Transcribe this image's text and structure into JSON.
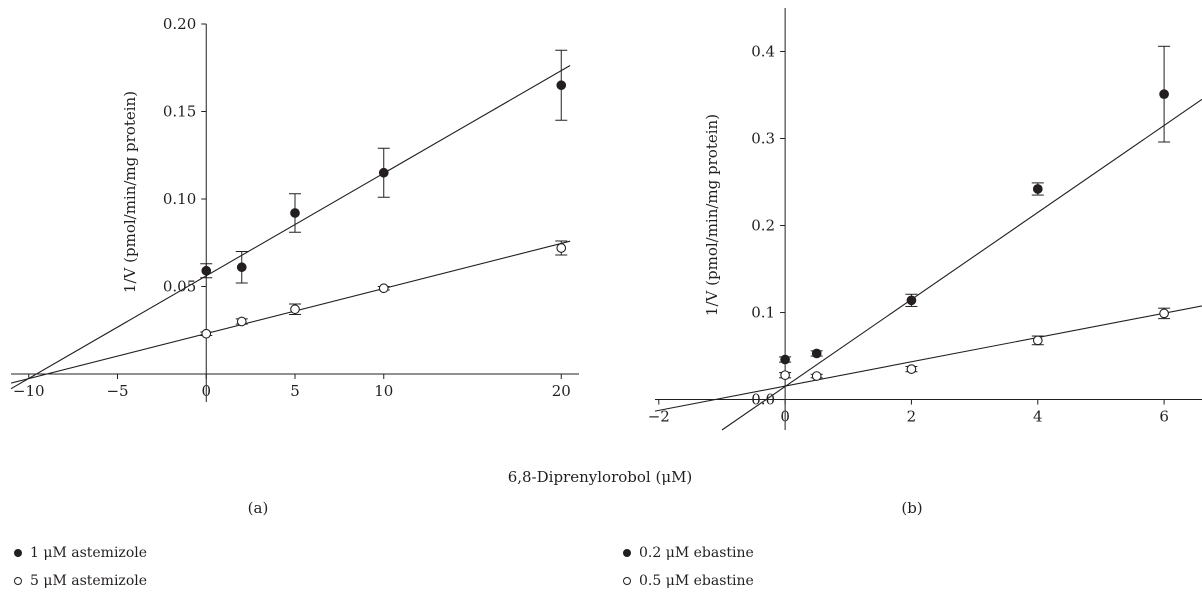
{
  "shared_xlabel": "6,8-Diprenylorobol (μM)",
  "chart_data": [
    {
      "type": "scatter",
      "panel_label": "(a)",
      "ylabel": "1/V  (pmol/min/mg protein)",
      "xlim": [
        -11,
        21
      ],
      "ylim": [
        -0.016,
        0.2
      ],
      "xticks": [
        -10,
        -5,
        0,
        5,
        10,
        20
      ],
      "xtick_labels": [
        "−10",
        "−5",
        "0",
        "5",
        "10",
        "20"
      ],
      "yticks": [
        0.05,
        0.1,
        0.15,
        0.2
      ],
      "ytick_labels": [
        "0.05",
        "0.10",
        "0.15",
        "0.20"
      ],
      "series": [
        {
          "name": "1 μM astemizole",
          "marker": "filled",
          "x": [
            0,
            2,
            5,
            10,
            20
          ],
          "y": [
            0.059,
            0.061,
            0.092,
            0.115,
            0.165
          ],
          "err": [
            0.004,
            0.009,
            0.011,
            0.014,
            0.02
          ],
          "fit_line": {
            "x": [
              -11,
              20.5
            ],
            "y": [
              -0.0084,
              0.1763
            ]
          }
        },
        {
          "name": "5 μM astemizole",
          "marker": "open",
          "x": [
            0,
            2,
            5,
            10,
            20
          ],
          "y": [
            0.023,
            0.03,
            0.037,
            0.049,
            0.072
          ],
          "err": [
            0.001,
            0.0015,
            0.003,
            0.001,
            0.004
          ],
          "fit_line": {
            "x": [
              -11,
              20.5
            ],
            "y": [
              -0.0052,
              0.0759
            ]
          }
        }
      ]
    },
    {
      "type": "scatter",
      "panel_label": "(b)",
      "ylabel": "1/V  (pmol/min/mg protein)",
      "xlim": [
        -2.06,
        6.6
      ],
      "ylim": [
        -0.035,
        0.45
      ],
      "xticks": [
        -2,
        0,
        2,
        4,
        6
      ],
      "xtick_labels": [
        "−2",
        "0",
        "2",
        "4",
        "6"
      ],
      "yticks": [
        0.0,
        0.1,
        0.2,
        0.3,
        0.4
      ],
      "ytick_labels": [
        "0.0",
        "0.1",
        "0.2",
        "0.3",
        "0.4"
      ],
      "series": [
        {
          "name": "0.2 μM ebastine",
          "marker": "filled",
          "x": [
            0,
            0.5,
            2,
            4,
            6
          ],
          "y": [
            0.046,
            0.053,
            0.114,
            0.242,
            0.351
          ],
          "err": [
            0.003,
            0.003,
            0.007,
            0.007,
            0.055
          ],
          "fit_line": {
            "x": [
              -1.0,
              6.6
            ],
            "y": [
              -0.035,
              0.345
            ]
          }
        },
        {
          "name": "0.5 μM ebastine",
          "marker": "open",
          "x": [
            0,
            0.5,
            2,
            4,
            6
          ],
          "y": [
            0.028,
            0.027,
            0.035,
            0.068,
            0.099
          ],
          "err": [
            0.003,
            0.002,
            0.003,
            0.005,
            0.006
          ],
          "fit_line": {
            "x": [
              -2.06,
              6.6
            ],
            "y": [
              -0.0133,
              0.1076
            ]
          }
        }
      ]
    }
  ],
  "legend_a": [
    {
      "marker": "filled",
      "label": "1 μM astemizole"
    },
    {
      "marker": "open",
      "label": "5 μM astemizole"
    }
  ],
  "legend_b": [
    {
      "marker": "filled",
      "label": "0.2 μM ebastine"
    },
    {
      "marker": "open",
      "label": "0.5 μM ebastine"
    }
  ]
}
